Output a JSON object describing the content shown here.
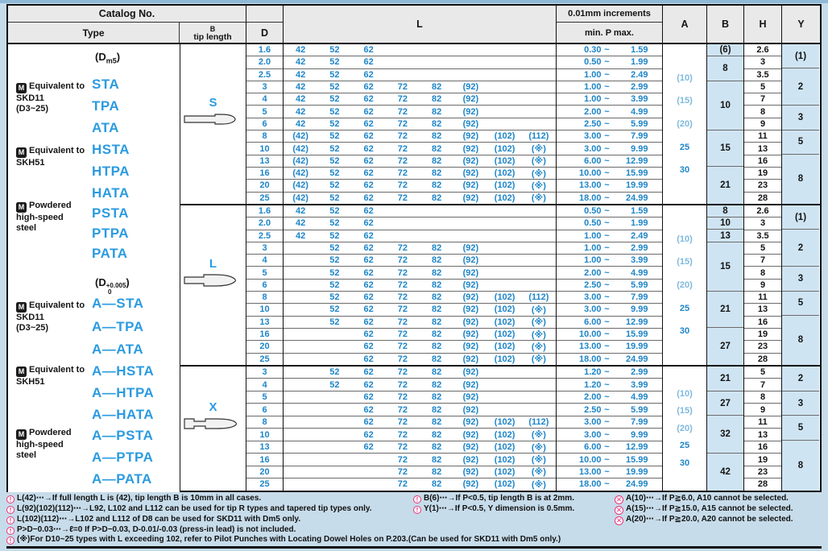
{
  "header": {
    "catalog_no": "Catalog No.",
    "type": "Type",
    "tip_b": "B",
    "tip_length": "tip length",
    "d": "D",
    "l": "L",
    "increments": "0.01mm increments",
    "min_p_max": "min.  P  max.",
    "a": "A",
    "b": "B",
    "h": "H",
    "y": "Y"
  },
  "type_column": {
    "blocks": [
      {
        "dim_label": {
          "pre": "(D",
          "sub": "m5",
          "post": ")"
        },
        "groups": [
          {
            "material": [
              "Equivalent to",
              "SKD11",
              "(D3~25)"
            ],
            "types": [
              "STA",
              "TPA",
              "ATA"
            ]
          },
          {
            "material": [
              "Equivalent to",
              "SKH51"
            ],
            "types": [
              "HSTA",
              "HTPA",
              "HATA"
            ]
          },
          {
            "material": [
              "Powdered",
              "high-speed",
              "steel"
            ],
            "types": [
              "PSTA",
              "PTPA",
              "PATA"
            ]
          }
        ]
      },
      {
        "dim_label": {
          "pre": "(D",
          "sup": "+0.005",
          "sub": "0",
          "post": ")"
        },
        "groups": [
          {
            "material": [
              "Equivalent to",
              "SKD11",
              "(D3~25)"
            ],
            "types": [
              "A—STA",
              "A—TPA",
              "A—ATA"
            ]
          },
          {
            "material": [
              "Equivalent to",
              "SKH51"
            ],
            "types": [
              "A—HSTA",
              "A—HTPA",
              "A—HATA"
            ]
          },
          {
            "material": [
              "Powdered",
              "high-speed",
              "steel"
            ],
            "types": [
              "A—PSTA",
              "A—PTPA",
              "A—PATA"
            ]
          }
        ]
      }
    ]
  },
  "sections": [
    {
      "tip_letter": "S",
      "rows": [
        {
          "d": "1.6",
          "l": [
            "42",
            "52",
            "62",
            "",
            "",
            "",
            "",
            ""
          ],
          "p": [
            "0.30",
            "1.59"
          ]
        },
        {
          "d": "2.0",
          "l": [
            "42",
            "52",
            "62",
            "",
            "",
            "",
            "",
            ""
          ],
          "p": [
            "0.50",
            "1.99"
          ]
        },
        {
          "d": "2.5",
          "l": [
            "42",
            "52",
            "62",
            "",
            "",
            "",
            "",
            ""
          ],
          "p": [
            "1.00",
            "2.49"
          ]
        },
        {
          "d": "3",
          "l": [
            "42",
            "52",
            "62",
            "72",
            "82",
            "(92)",
            "",
            ""
          ],
          "p": [
            "1.00",
            "2.99"
          ]
        },
        {
          "d": "4",
          "l": [
            "42",
            "52",
            "62",
            "72",
            "82",
            "(92)",
            "",
            ""
          ],
          "p": [
            "1.00",
            "3.99"
          ]
        },
        {
          "d": "5",
          "l": [
            "42",
            "52",
            "62",
            "72",
            "82",
            "(92)",
            "",
            ""
          ],
          "p": [
            "2.00",
            "4.99"
          ]
        },
        {
          "d": "6",
          "l": [
            "42",
            "52",
            "62",
            "72",
            "82",
            "(92)",
            "",
            ""
          ],
          "p": [
            "2.50",
            "5.99"
          ]
        },
        {
          "d": "8",
          "l": [
            "(42)",
            "52",
            "62",
            "72",
            "82",
            "(92)",
            "(102)",
            "(112)"
          ],
          "p": [
            "3.00",
            "7.99"
          ]
        },
        {
          "d": "10",
          "l": [
            "(42)",
            "52",
            "62",
            "72",
            "82",
            "(92)",
            "(102)",
            "(※)"
          ],
          "p": [
            "3.00",
            "9.99"
          ]
        },
        {
          "d": "13",
          "l": [
            "(42)",
            "52",
            "62",
            "72",
            "82",
            "(92)",
            "(102)",
            "(※)"
          ],
          "p": [
            "6.00",
            "12.99"
          ]
        },
        {
          "d": "16",
          "l": [
            "(42)",
            "52",
            "62",
            "72",
            "82",
            "(92)",
            "(102)",
            "(※)"
          ],
          "p": [
            "10.00",
            "15.99"
          ]
        },
        {
          "d": "20",
          "l": [
            "(42)",
            "52",
            "62",
            "72",
            "82",
            "(92)",
            "(102)",
            "(※)"
          ],
          "p": [
            "13.00",
            "19.99"
          ]
        },
        {
          "d": "25",
          "l": [
            "(42)",
            "52",
            "62",
            "72",
            "82",
            "(92)",
            "(102)",
            "(※)"
          ],
          "p": [
            "18.00",
            "24.99"
          ]
        }
      ],
      "a_values": [
        "(10)",
        "(15)",
        "(20)",
        "25",
        "30"
      ],
      "b_groups": [
        {
          "v": "(6)",
          "span": 1
        },
        {
          "v": "8",
          "span": 2
        },
        {
          "v": "10",
          "span": 4
        },
        {
          "v": "15",
          "span": 3
        },
        {
          "v": "21",
          "span": 3
        }
      ],
      "h_values": [
        "2.6",
        "3",
        "3.5",
        "5",
        "7",
        "8",
        "9",
        "11",
        "13",
        "16",
        "19",
        "23",
        "28"
      ],
      "y_groups": [
        {
          "v": "(1)",
          "span": 2
        },
        {
          "v": "2",
          "span": 3
        },
        {
          "v": "3",
          "span": 2
        },
        {
          "v": "5",
          "span": 2
        },
        {
          "v": "8",
          "span": 4
        }
      ]
    },
    {
      "tip_letter": "L",
      "rows": [
        {
          "d": "1.6",
          "l": [
            "42",
            "52",
            "62",
            "",
            "",
            "",
            "",
            ""
          ],
          "p": [
            "0.50",
            "1.59"
          ]
        },
        {
          "d": "2.0",
          "l": [
            "42",
            "52",
            "62",
            "",
            "",
            "",
            "",
            ""
          ],
          "p": [
            "0.50",
            "1.99"
          ]
        },
        {
          "d": "2.5",
          "l": [
            "42",
            "52",
            "62",
            "",
            "",
            "",
            "",
            ""
          ],
          "p": [
            "1.00",
            "2.49"
          ]
        },
        {
          "d": "3",
          "l": [
            "",
            "52",
            "62",
            "72",
            "82",
            "(92)",
            "",
            ""
          ],
          "p": [
            "1.00",
            "2.99"
          ]
        },
        {
          "d": "4",
          "l": [
            "",
            "52",
            "62",
            "72",
            "82",
            "(92)",
            "",
            ""
          ],
          "p": [
            "1.00",
            "3.99"
          ]
        },
        {
          "d": "5",
          "l": [
            "",
            "52",
            "62",
            "72",
            "82",
            "(92)",
            "",
            ""
          ],
          "p": [
            "2.00",
            "4.99"
          ]
        },
        {
          "d": "6",
          "l": [
            "",
            "52",
            "62",
            "72",
            "82",
            "(92)",
            "",
            ""
          ],
          "p": [
            "2.50",
            "5.99"
          ]
        },
        {
          "d": "8",
          "l": [
            "",
            "52",
            "62",
            "72",
            "82",
            "(92)",
            "(102)",
            "(112)"
          ],
          "p": [
            "3.00",
            "7.99"
          ]
        },
        {
          "d": "10",
          "l": [
            "",
            "52",
            "62",
            "72",
            "82",
            "(92)",
            "(102)",
            "(※)"
          ],
          "p": [
            "3.00",
            "9.99"
          ]
        },
        {
          "d": "13",
          "l": [
            "",
            "52",
            "62",
            "72",
            "82",
            "(92)",
            "(102)",
            "(※)"
          ],
          "p": [
            "6.00",
            "12.99"
          ]
        },
        {
          "d": "16",
          "l": [
            "",
            "",
            "62",
            "72",
            "82",
            "(92)",
            "(102)",
            "(※)"
          ],
          "p": [
            "10.00",
            "15.99"
          ]
        },
        {
          "d": "20",
          "l": [
            "",
            "",
            "62",
            "72",
            "82",
            "(92)",
            "(102)",
            "(※)"
          ],
          "p": [
            "13.00",
            "19.99"
          ]
        },
        {
          "d": "25",
          "l": [
            "",
            "",
            "62",
            "72",
            "82",
            "(92)",
            "(102)",
            "(※)"
          ],
          "p": [
            "18.00",
            "24.99"
          ]
        }
      ],
      "a_values": [
        "(10)",
        "(15)",
        "(20)",
        "25",
        "30"
      ],
      "b_groups": [
        {
          "v": "8",
          "span": 1
        },
        {
          "v": "10",
          "span": 1
        },
        {
          "v": "13",
          "span": 1
        },
        {
          "v": "15",
          "span": 4
        },
        {
          "v": "21",
          "span": 3
        },
        {
          "v": "27",
          "span": 3
        }
      ],
      "h_values": [
        "2.6",
        "3",
        "3.5",
        "5",
        "7",
        "8",
        "9",
        "11",
        "13",
        "16",
        "19",
        "23",
        "28"
      ],
      "y_groups": [
        {
          "v": "(1)",
          "span": 2
        },
        {
          "v": "2",
          "span": 3
        },
        {
          "v": "3",
          "span": 2
        },
        {
          "v": "5",
          "span": 2
        },
        {
          "v": "8",
          "span": 4
        }
      ]
    },
    {
      "tip_letter": "X",
      "rows": [
        {
          "d": "3",
          "l": [
            "",
            "52",
            "62",
            "72",
            "82",
            "(92)",
            "",
            ""
          ],
          "p": [
            "1.20",
            "2.99"
          ]
        },
        {
          "d": "4",
          "l": [
            "",
            "52",
            "62",
            "72",
            "82",
            "(92)",
            "",
            ""
          ],
          "p": [
            "1.20",
            "3.99"
          ]
        },
        {
          "d": "5",
          "l": [
            "",
            "",
            "62",
            "72",
            "82",
            "(92)",
            "",
            ""
          ],
          "p": [
            "2.00",
            "4.99"
          ]
        },
        {
          "d": "6",
          "l": [
            "",
            "",
            "62",
            "72",
            "82",
            "(92)",
            "",
            ""
          ],
          "p": [
            "2.50",
            "5.99"
          ]
        },
        {
          "d": "8",
          "l": [
            "",
            "",
            "62",
            "72",
            "82",
            "(92)",
            "(102)",
            "(112)"
          ],
          "p": [
            "3.00",
            "7.99"
          ]
        },
        {
          "d": "10",
          "l": [
            "",
            "",
            "62",
            "72",
            "82",
            "(92)",
            "(102)",
            "(※)"
          ],
          "p": [
            "3.00",
            "9.99"
          ]
        },
        {
          "d": "13",
          "l": [
            "",
            "",
            "62",
            "72",
            "82",
            "(92)",
            "(102)",
            "(※)"
          ],
          "p": [
            "6.00",
            "12.99"
          ]
        },
        {
          "d": "16",
          "l": [
            "",
            "",
            "",
            "72",
            "82",
            "(92)",
            "(102)",
            "(※)"
          ],
          "p": [
            "10.00",
            "15.99"
          ]
        },
        {
          "d": "20",
          "l": [
            "",
            "",
            "",
            "72",
            "82",
            "(92)",
            "(102)",
            "(※)"
          ],
          "p": [
            "13.00",
            "19.99"
          ]
        },
        {
          "d": "25",
          "l": [
            "",
            "",
            "",
            "72",
            "82",
            "(92)",
            "(102)",
            "(※)"
          ],
          "p": [
            "18.00",
            "24.99"
          ]
        }
      ],
      "a_values": [
        "(10)",
        "(15)",
        "(20)",
        "25",
        "30"
      ],
      "b_groups": [
        {
          "v": "21",
          "span": 2
        },
        {
          "v": "27",
          "span": 2
        },
        {
          "v": "32",
          "span": 3
        },
        {
          "v": "42",
          "span": 3
        }
      ],
      "h_values": [
        "5",
        "7",
        "8",
        "9",
        "11",
        "13",
        "16",
        "19",
        "23",
        "28"
      ],
      "y_groups": [
        {
          "v": "2",
          "span": 2
        },
        {
          "v": "3",
          "span": 2
        },
        {
          "v": "5",
          "span": 2
        },
        {
          "v": "8",
          "span": 4
        }
      ]
    }
  ],
  "notes": {
    "left": [
      "L(42)⋯→If full length L is (42), tip length B is 10mm in all cases.",
      "L(92)(102)(112)⋯→L92, L102 and L112 can be used for tip R types and tapered tip types only.",
      "L(102)(112)⋯→L102 and L112 of D8 can be used for SKD11 with Dm5 only.",
      "P>D−0.03⋯→ℓ=0   If P>D−0.03, D-0.01/-0.03 (press-in lead) is not included.",
      "(※)For D10~25 types with L exceeding 102, refer to Pilot Punches with Locating Dowel Holes on P.203.(Can be used for SKD11 with Dm5 only.)"
    ],
    "middle": [
      "B(6)⋯→If P<0.5, tip length B is at 2mm.",
      "Y(1)⋯→If P<0.5, Y dimension is 0.5mm."
    ],
    "right": [
      "A(10)⋯→If P≧6.0, A10 cannot be selected.",
      "A(15)⋯→If P≧15.0, A15 cannot be selected.",
      "A(20)⋯→If P≧20.0, A20 cannot be selected."
    ],
    "colors": {
      "alert": "#e8337d",
      "value_blue": "#1d85c8",
      "paren_blue": "#7fb9dd",
      "cell_blue": "#cfe4f2"
    }
  }
}
